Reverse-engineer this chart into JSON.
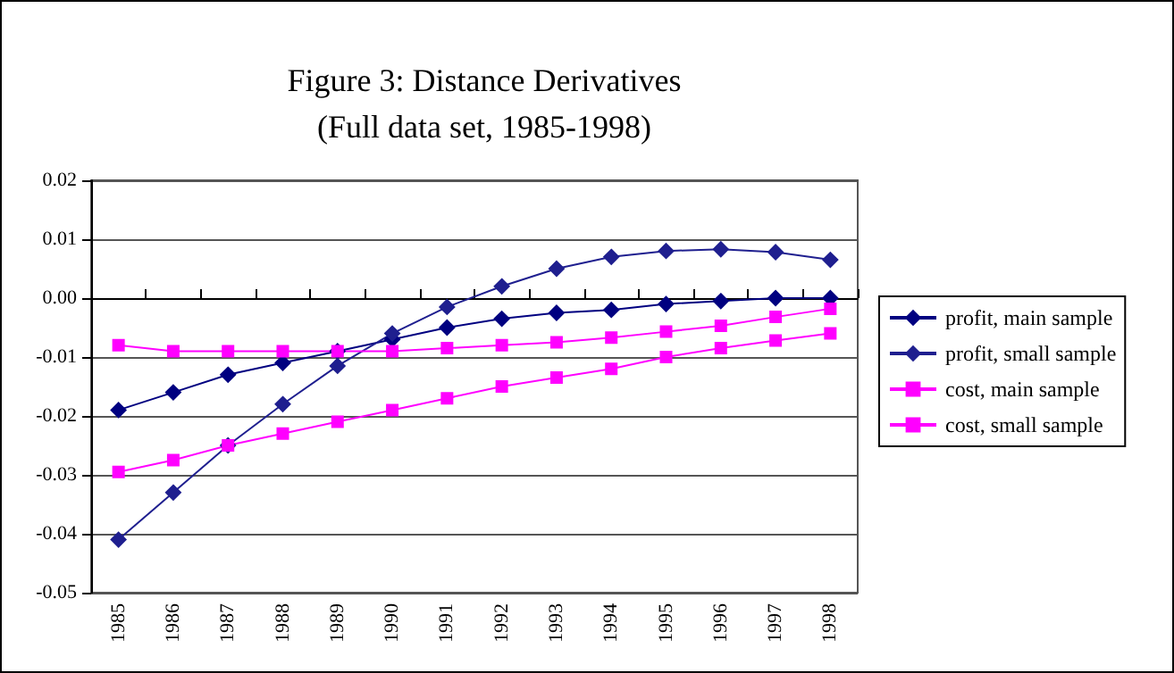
{
  "chart_data": {
    "type": "line",
    "title": "Figure 3: Distance Derivatives",
    "subtitle": "(Full data set, 1985-1998)",
    "categories": [
      "1985",
      "1986",
      "1987",
      "1988",
      "1989",
      "1990",
      "1991",
      "1992",
      "1993",
      "1994",
      "1995",
      "1996",
      "1997",
      "1998"
    ],
    "series": [
      {
        "name": "profit, main sample",
        "color": "#000080",
        "marker": "diamond",
        "values": [
          -0.019,
          -0.016,
          -0.013,
          -0.011,
          -0.009,
          -0.007,
          -0.005,
          -0.0035,
          -0.0025,
          -0.002,
          -0.001,
          -0.0005,
          0,
          0
        ]
      },
      {
        "name": "profit, small sample",
        "color": "#1f1f8f",
        "marker": "diamond",
        "values": [
          -0.041,
          -0.033,
          -0.025,
          -0.018,
          -0.0115,
          -0.006,
          -0.0015,
          0.002,
          0.005,
          0.007,
          0.008,
          0.0083,
          0.0078,
          0.0065
        ]
      },
      {
        "name": "cost, main sample",
        "color": "#ff00ff",
        "marker": "square",
        "values": [
          -0.008,
          -0.009,
          -0.009,
          -0.009,
          -0.009,
          -0.009,
          -0.0085,
          -0.008,
          -0.0075,
          -0.0067,
          -0.0057,
          -0.0047,
          -0.0032,
          -0.0018
        ]
      },
      {
        "name": "cost, small sample",
        "color": "#ff00ff",
        "marker": "square",
        "values": [
          -0.0295,
          -0.0275,
          -0.025,
          -0.023,
          -0.021,
          -0.019,
          -0.017,
          -0.015,
          -0.0135,
          -0.012,
          -0.01,
          -0.0085,
          -0.0072,
          -0.006
        ]
      }
    ],
    "ylim": [
      -0.05,
      0.02
    ],
    "yticks": [
      {
        "value": -0.05,
        "label": "-0.05"
      },
      {
        "value": -0.04,
        "label": "-0.04"
      },
      {
        "value": -0.03,
        "label": "-0.03"
      },
      {
        "value": -0.02,
        "label": "-0.02"
      },
      {
        "value": -0.01,
        "label": "-0.01"
      },
      {
        "value": 0,
        "label": "0.00"
      },
      {
        "value": 0.01,
        "label": "0.01"
      },
      {
        "value": 0.02,
        "label": "0.02"
      }
    ],
    "grid": "y",
    "legend": "right",
    "line_style": "solid"
  }
}
